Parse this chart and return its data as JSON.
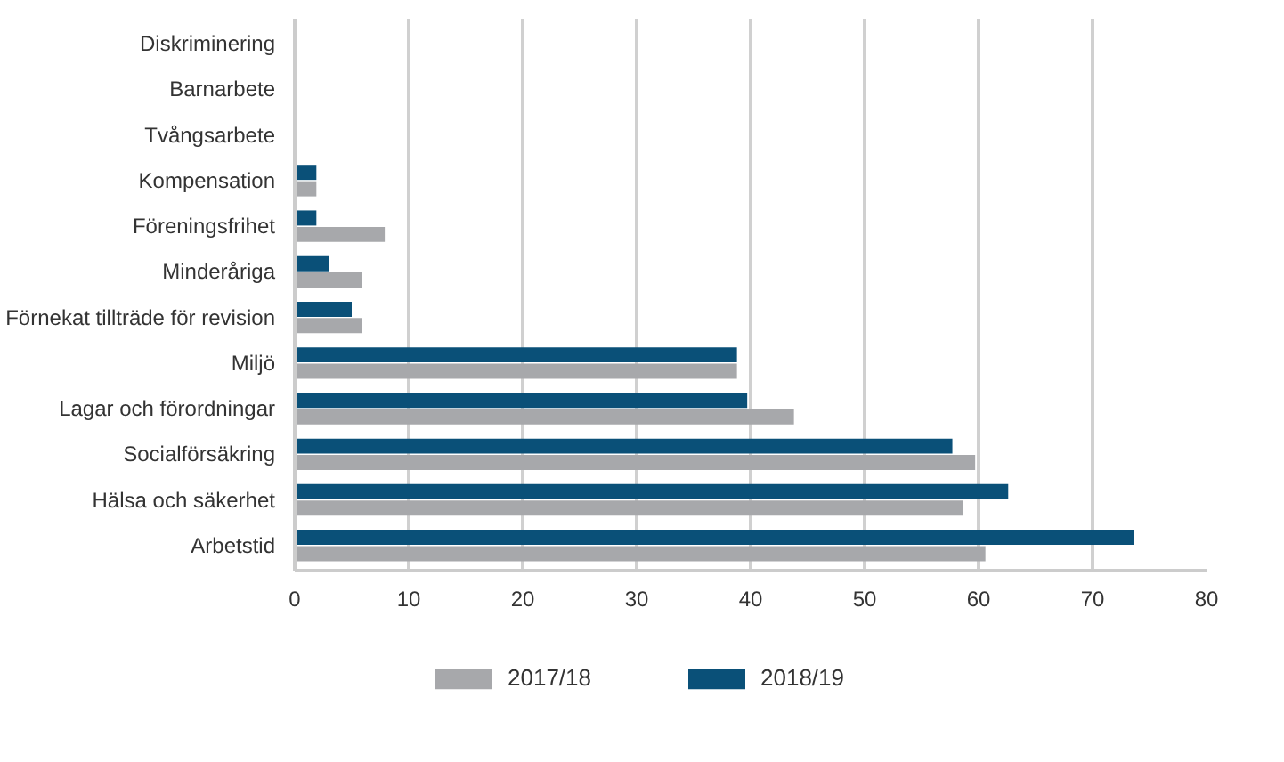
{
  "chart_data": {
    "type": "bar",
    "orientation": "horizontal",
    "categories": [
      "Diskriminering",
      "Barnarbete",
      "Tvångsarbete",
      "Kompensation",
      "Föreningsfrihet",
      "Minderåriga",
      "Förnekat tillträde för revision",
      "Miljö",
      "Lagar och förordningar",
      "Socialförsäkring",
      "Hälsa och säkerhet",
      "Arbetstid"
    ],
    "series": [
      {
        "name": "2017/18",
        "color": "#a7a8ab",
        "values": [
          0,
          0,
          0,
          1.9,
          7.9,
          5.9,
          5.9,
          38.8,
          43.8,
          59.7,
          58.6,
          60.6
        ]
      },
      {
        "name": "2018/19",
        "color": "#0a5078",
        "values": [
          0,
          0,
          0,
          1.9,
          1.9,
          3.0,
          5.0,
          38.8,
          39.7,
          57.7,
          62.6,
          73.6
        ]
      }
    ],
    "xlim": [
      0,
      80
    ],
    "xticks": [
      0,
      10,
      20,
      30,
      40,
      50,
      60,
      70,
      80
    ],
    "grid": "x",
    "legend": "bottom"
  }
}
